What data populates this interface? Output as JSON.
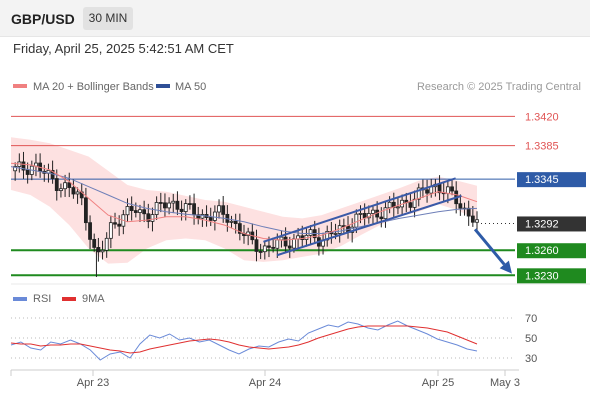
{
  "header": {
    "symbol": "GBP/USD",
    "timeframe": "30 MIN",
    "datetime": "Friday, April 25, 2025 5:42:51 AM CET"
  },
  "legend": {
    "ma20_label": "MA 20 + Bollinger Bands",
    "ma50_label": "MA 50",
    "credit": "Research © 2025 Trading Central",
    "rsi_label": "RSI",
    "rsi_ma_label": "9MA"
  },
  "colors": {
    "candle_up": "#ffffff",
    "candle_down": "#222222",
    "bollinger_fill": "#fde1e1",
    "ma20": "#f08080",
    "ma50": "#6e7fb8",
    "trend_channel": "#3a5aa8",
    "resistance": "#e05555",
    "pivot": "#2e5ba7",
    "support": "#1f8a1f",
    "current_price": "#333333",
    "rsi": "#6a8ad8",
    "rsi_ma": "#e03030"
  },
  "chart_data": [
    {
      "type": "candlestick",
      "instrument": "GBP/USD",
      "interval": "30 MIN",
      "x_ticks": [
        "Apr 23",
        "Apr 24",
        "Apr 25",
        "May 3"
      ],
      "ylim": [
        1.3222,
        1.3448
      ],
      "levels": [
        {
          "value": 1.342,
          "label": "1.3420",
          "kind": "resistance"
        },
        {
          "value": 1.3385,
          "label": "1.3385",
          "kind": "resistance"
        },
        {
          "value": 1.3345,
          "label": "1.3345",
          "kind": "pivot"
        },
        {
          "value": 1.3292,
          "label": "1.3292",
          "kind": "current"
        },
        {
          "value": 1.326,
          "label": "1.3260",
          "kind": "support"
        },
        {
          "value": 1.323,
          "label": "1.3230",
          "kind": "support"
        }
      ],
      "close_path": [
        [
          0,
          1.3355
        ],
        [
          6,
          1.3358
        ],
        [
          12,
          1.3362
        ],
        [
          18,
          1.335
        ],
        [
          24,
          1.334
        ],
        [
          30,
          1.3333
        ],
        [
          36,
          1.3322
        ],
        [
          40,
          1.3288
        ],
        [
          44,
          1.3248
        ],
        [
          48,
          1.3265
        ],
        [
          52,
          1.3292
        ],
        [
          58,
          1.3302
        ],
        [
          64,
          1.3308
        ],
        [
          70,
          1.3302
        ],
        [
          76,
          1.331
        ],
        [
          82,
          1.3318
        ],
        [
          88,
          1.3312
        ],
        [
          94,
          1.3305
        ],
        [
          100,
          1.33
        ],
        [
          106,
          1.3304
        ],
        [
          112,
          1.33
        ],
        [
          118,
          1.3284
        ],
        [
          124,
          1.3268
        ],
        [
          130,
          1.3262
        ],
        [
          136,
          1.3266
        ],
        [
          142,
          1.327
        ],
        [
          148,
          1.3274
        ],
        [
          154,
          1.3277
        ],
        [
          160,
          1.3274
        ],
        [
          166,
          1.328
        ],
        [
          172,
          1.3287
        ],
        [
          178,
          1.3298
        ],
        [
          184,
          1.3302
        ],
        [
          190,
          1.3306
        ],
        [
          196,
          1.331
        ],
        [
          202,
          1.3317
        ],
        [
          208,
          1.3322
        ],
        [
          214,
          1.3332
        ],
        [
          218,
          1.3338
        ],
        [
          222,
          1.3334
        ],
        [
          226,
          1.3326
        ],
        [
          230,
          1.3318
        ],
        [
          234,
          1.3307
        ],
        [
          238,
          1.3299
        ],
        [
          240,
          1.3292
        ]
      ],
      "bollinger_upper": [
        [
          0,
          1.3395
        ],
        [
          10,
          1.3392
        ],
        [
          20,
          1.3388
        ],
        [
          30,
          1.338
        ],
        [
          40,
          1.3372
        ],
        [
          50,
          1.3355
        ],
        [
          60,
          1.3338
        ],
        [
          70,
          1.3332
        ],
        [
          80,
          1.333
        ],
        [
          90,
          1.3325
        ],
        [
          100,
          1.332
        ],
        [
          110,
          1.3318
        ],
        [
          120,
          1.3312
        ],
        [
          130,
          1.3306
        ],
        [
          140,
          1.33
        ],
        [
          150,
          1.3298
        ],
        [
          160,
          1.3302
        ],
        [
          170,
          1.331
        ],
        [
          180,
          1.3318
        ],
        [
          190,
          1.3326
        ],
        [
          200,
          1.3334
        ],
        [
          210,
          1.3343
        ],
        [
          220,
          1.3348
        ],
        [
          230,
          1.3343
        ],
        [
          240,
          1.3337
        ]
      ],
      "bollinger_lower": [
        [
          0,
          1.3332
        ],
        [
          10,
          1.3326
        ],
        [
          20,
          1.3312
        ],
        [
          30,
          1.329
        ],
        [
          40,
          1.3262
        ],
        [
          50,
          1.3244
        ],
        [
          60,
          1.3245
        ],
        [
          70,
          1.3262
        ],
        [
          80,
          1.3272
        ],
        [
          90,
          1.3274
        ],
        [
          100,
          1.3272
        ],
        [
          110,
          1.3262
        ],
        [
          120,
          1.3248
        ],
        [
          130,
          1.3246
        ],
        [
          140,
          1.3248
        ],
        [
          150,
          1.3252
        ],
        [
          160,
          1.3256
        ],
        [
          170,
          1.3265
        ],
        [
          180,
          1.3278
        ],
        [
          190,
          1.329
        ],
        [
          200,
          1.33
        ],
        [
          210,
          1.3306
        ],
        [
          220,
          1.3315
        ],
        [
          230,
          1.3308
        ],
        [
          240,
          1.3296
        ]
      ],
      "ma20": [
        [
          0,
          1.3364
        ],
        [
          10,
          1.3362
        ],
        [
          20,
          1.3356
        ],
        [
          30,
          1.3342
        ],
        [
          40,
          1.3322
        ],
        [
          50,
          1.3302
        ],
        [
          60,
          1.3294
        ],
        [
          70,
          1.3296
        ],
        [
          80,
          1.33
        ],
        [
          90,
          1.33
        ],
        [
          100,
          1.3296
        ],
        [
          110,
          1.329
        ],
        [
          120,
          1.328
        ],
        [
          130,
          1.3274
        ],
        [
          140,
          1.3272
        ],
        [
          150,
          1.3274
        ],
        [
          160,
          1.3278
        ],
        [
          170,
          1.3286
        ],
        [
          180,
          1.3296
        ],
        [
          190,
          1.3306
        ],
        [
          200,
          1.3314
        ],
        [
          210,
          1.3322
        ],
        [
          220,
          1.333
        ],
        [
          230,
          1.3326
        ],
        [
          240,
          1.3318
        ]
      ],
      "ma50": [
        [
          0,
          1.336
        ],
        [
          10,
          1.3356
        ],
        [
          20,
          1.3352
        ],
        [
          30,
          1.3346
        ],
        [
          40,
          1.3336
        ],
        [
          50,
          1.3326
        ],
        [
          60,
          1.3316
        ],
        [
          70,
          1.331
        ],
        [
          80,
          1.3306
        ],
        [
          90,
          1.3303
        ],
        [
          100,
          1.3301
        ],
        [
          110,
          1.3298
        ],
        [
          120,
          1.3294
        ],
        [
          130,
          1.3288
        ],
        [
          140,
          1.3283
        ],
        [
          150,
          1.328
        ],
        [
          160,
          1.328
        ],
        [
          170,
          1.3283
        ],
        [
          180,
          1.3288
        ],
        [
          190,
          1.3293
        ],
        [
          200,
          1.3298
        ],
        [
          210,
          1.3302
        ],
        [
          220,
          1.3306
        ],
        [
          230,
          1.3309
        ],
        [
          240,
          1.331
        ]
      ],
      "trend_channel": {
        "upper": [
          [
            130,
            1.327
          ],
          [
            229,
            1.3346
          ]
        ],
        "lower": [
          [
            137,
            1.3254
          ],
          [
            232,
            1.3325
          ]
        ]
      },
      "forecast_arrow": [
        [
          239,
          1.3285
        ],
        [
          258,
          1.3232
        ]
      ]
    },
    {
      "type": "line",
      "name": "RSI",
      "ylim": [
        20,
        80
      ],
      "y_ticks": [
        70,
        50,
        30
      ],
      "series": [
        {
          "name": "RSI",
          "values": [
            43,
            46,
            40,
            38,
            46,
            44,
            48,
            44,
            38,
            28,
            34,
            36,
            30,
            44,
            53,
            50,
            54,
            48,
            50,
            46,
            48,
            43,
            38,
            34,
            39,
            42,
            41,
            46,
            49,
            47,
            55,
            59,
            63,
            61,
            66,
            64,
            60,
            58,
            63,
            67,
            62,
            58,
            54,
            49,
            46,
            43,
            39,
            37
          ]
        },
        {
          "name": "9MA",
          "values": [
            45,
            44,
            44,
            42,
            43,
            43,
            44,
            44,
            42,
            40,
            38,
            37,
            35,
            36,
            39,
            41,
            43,
            45,
            47,
            48,
            49,
            48,
            46,
            43,
            41,
            40,
            39,
            40,
            41,
            43,
            46,
            50,
            53,
            56,
            59,
            61,
            62,
            62,
            62,
            62,
            62,
            61,
            60,
            58,
            56,
            52,
            48,
            44
          ]
        }
      ]
    }
  ]
}
